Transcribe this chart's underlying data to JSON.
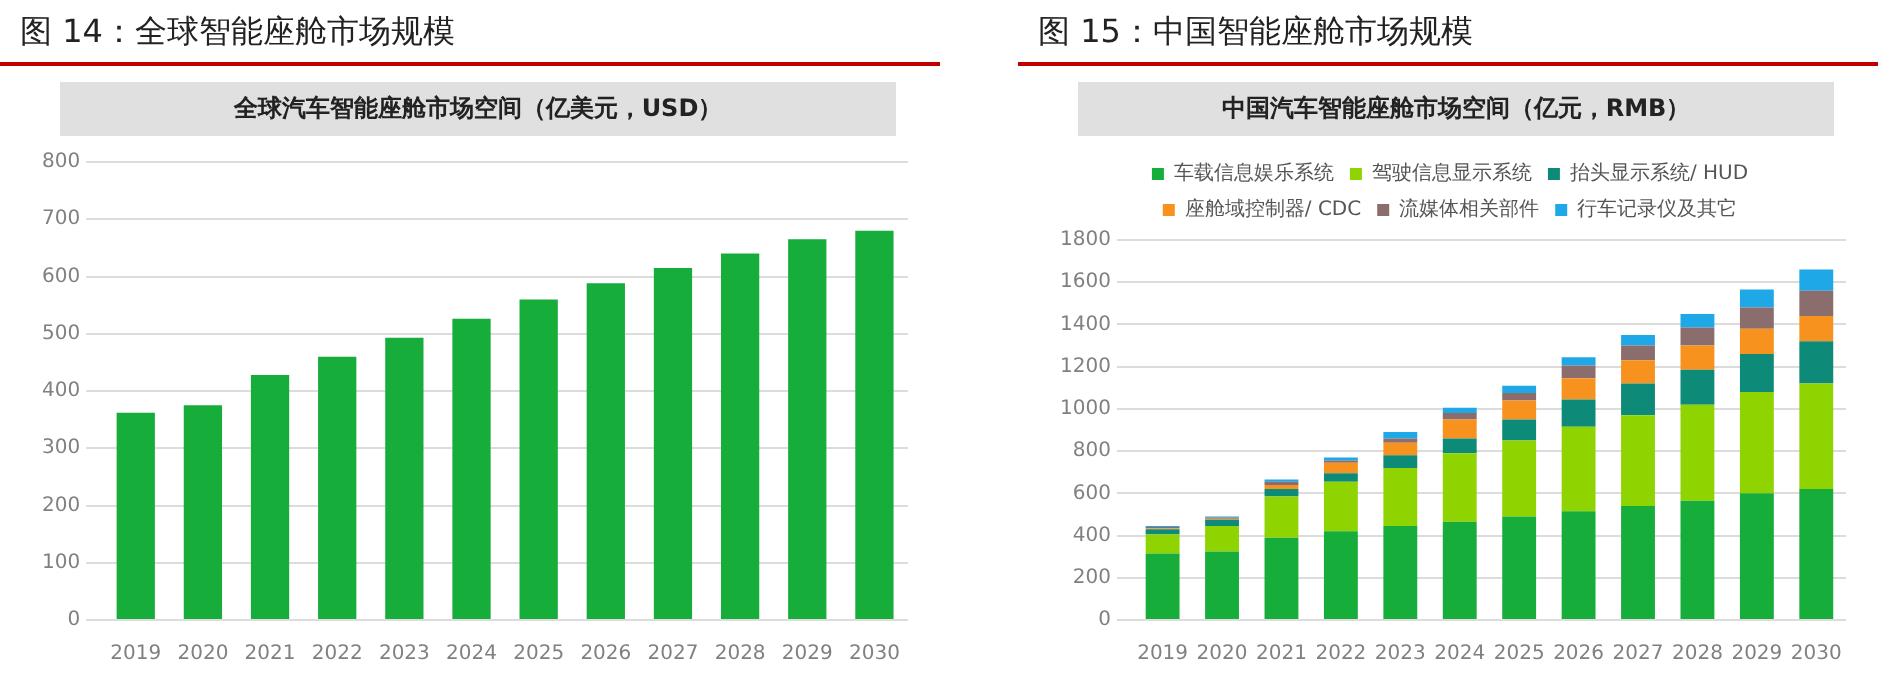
{
  "chart_data": [
    {
      "type": "bar",
      "title": "图 14：全球智能座舱市场规模",
      "subtitle": "全球汽车智能座舱市场空间（亿美元，USD）",
      "categories": [
        "2019",
        "2020",
        "2021",
        "2022",
        "2023",
        "2024",
        "2025",
        "2026",
        "2027",
        "2028",
        "2029",
        "2030"
      ],
      "values": [
        362,
        375,
        428,
        460,
        493,
        526,
        560,
        588,
        615,
        640,
        665,
        680
      ],
      "color": "#16ad3a",
      "ylim": [
        0,
        800
      ],
      "yticks": [
        0,
        100,
        200,
        300,
        400,
        500,
        600,
        700,
        800
      ],
      "grid": "y",
      "legend": false
    },
    {
      "type": "bar",
      "title": "图 15：中国智能座舱市场规模",
      "subtitle": "中国汽车智能座舱市场空间（亿元，RMB）",
      "categories": [
        "2019",
        "2020",
        "2021",
        "2022",
        "2023",
        "2024",
        "2025",
        "2026",
        "2027",
        "2028",
        "2029",
        "2030"
      ],
      "stacked": true,
      "ylim": [
        0,
        1800
      ],
      "yticks": [
        0,
        200,
        400,
        600,
        800,
        1000,
        1200,
        1400,
        1600,
        1800
      ],
      "grid": "y",
      "legend": "top",
      "series": [
        {
          "name": "车载信息娱乐系统",
          "color": "#16ad3a",
          "values": [
            315,
            325,
            390,
            420,
            445,
            465,
            490,
            515,
            540,
            565,
            600,
            620
          ]
        },
        {
          "name": "驾驶信息显示系统",
          "color": "#8fd400",
          "values": [
            90,
            120,
            195,
            235,
            275,
            325,
            360,
            400,
            430,
            455,
            480,
            500
          ]
        },
        {
          "name": "抬头显示系统/ HUD",
          "color": "#0e8a78",
          "values": [
            25,
            30,
            35,
            40,
            60,
            70,
            100,
            130,
            150,
            165,
            180,
            200
          ]
        },
        {
          "name": "座舱域控制器/ CDC",
          "color": "#f7921e",
          "values": [
            5,
            5,
            20,
            50,
            60,
            90,
            90,
            100,
            110,
            115,
            120,
            120
          ]
        },
        {
          "name": "流媒体相关部件",
          "color": "#8c6d6d",
          "values": [
            5,
            5,
            15,
            10,
            20,
            30,
            35,
            60,
            70,
            85,
            100,
            120
          ]
        },
        {
          "name": "行车记录仪及其它",
          "color": "#1fa8e8",
          "values": [
            5,
            5,
            10,
            15,
            30,
            25,
            35,
            40,
            50,
            65,
            85,
            100
          ]
        }
      ]
    }
  ]
}
